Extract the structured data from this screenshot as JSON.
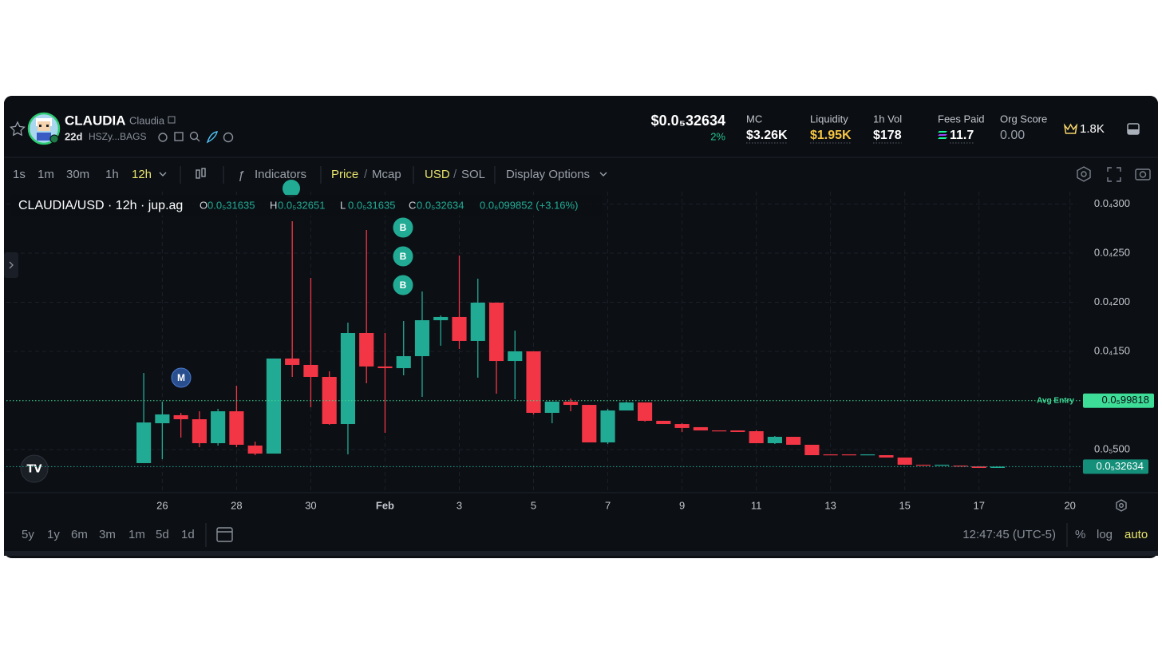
{
  "header": {
    "name": "CLAUDIA",
    "symbol": "Claudia",
    "age": "22d",
    "address": "HSZy...BAGS",
    "price": "$0.0₅32634",
    "change": "2%",
    "stats": [
      {
        "label": "MC",
        "value": "$3.26K"
      },
      {
        "label": "Liquidity",
        "value": "$1.95K"
      },
      {
        "label": "1h Vol",
        "value": "$178"
      },
      {
        "label": "Fees Paid",
        "value": "11.7"
      },
      {
        "label": "Org Score",
        "value": "0.00"
      }
    ],
    "holders": "1.8K"
  },
  "toolbar": {
    "intervals": [
      "1s",
      "1m",
      "30m",
      "1h",
      "12h"
    ],
    "active_interval": 4,
    "indicators": "Indicators",
    "separator": "/",
    "price": "Price",
    "mcap": "Mcap",
    "usd": "USD",
    "sol": "SOL",
    "display": "Display Options"
  },
  "legend": {
    "title": "CLAUDIA/USD · 12h · jup.ag",
    "ohlc": [
      {
        "key": "O",
        "value": "0.0₅31635"
      },
      {
        "key": "H",
        "value": "0.0₅32651"
      },
      {
        "key": "L",
        "value": "0.0₅31635"
      },
      {
        "key": "C",
        "value": "0.0₅32634"
      }
    ],
    "change": "0.0₆099852 (+3.16%)"
  },
  "markers": [
    {
      "label": "M"
    },
    {
      "label": "B"
    },
    {
      "label": "B"
    },
    {
      "label": "B"
    }
  ],
  "chart_data": {
    "type": "candlestick",
    "up_color": "#22ab94",
    "down_color": "#f23645",
    "grid": true,
    "ylim": [
      6.1e-07,
      3.126e-05
    ],
    "yticks": [
      {
        "value": 3e-05,
        "label": "0.0₄300"
      },
      {
        "value": 2.5e-05,
        "label": "0.0₄250"
      },
      {
        "value": 2e-05,
        "label": "0.0₄200"
      },
      {
        "value": 1.5e-05,
        "label": "0.0₄150"
      },
      {
        "value": 5e-06,
        "label": "0.0₅500"
      }
    ],
    "xlim": [
      -7.4,
      50.3
    ],
    "xticks": [
      {
        "value": 1,
        "label": "26"
      },
      {
        "value": 5,
        "label": "28"
      },
      {
        "value": 9,
        "label": "30"
      },
      {
        "value": 13,
        "label": "Feb"
      },
      {
        "value": 17,
        "label": "3"
      },
      {
        "value": 21,
        "label": "5"
      },
      {
        "value": 25,
        "label": "7"
      },
      {
        "value": 29,
        "label": "9"
      },
      {
        "value": 33,
        "label": "11"
      },
      {
        "value": 37,
        "label": "13"
      },
      {
        "value": 41,
        "label": "15"
      },
      {
        "value": 45,
        "label": "17"
      },
      {
        "value": 49.9,
        "label": "20"
      }
    ],
    "avg_entry": {
      "name": "Avg Entry",
      "value": 9.9818e-06,
      "label": "0.0₅99818"
    },
    "last_price": {
      "value": 3.2634e-06,
      "label": "0.0₅32634"
    },
    "candles": [
      {
        "o": 3.62e-06,
        "h": 1.28e-05,
        "l": 3.62e-06,
        "c": 7.76e-06
      },
      {
        "o": 7.68e-06,
        "h": 9.88e-06,
        "l": 4.02e-06,
        "c": 8.58e-06
      },
      {
        "o": 8.5e-06,
        "h": 8.74e-06,
        "l": 6.22e-06,
        "c": 8.09e-06
      },
      {
        "o": 8.09e-06,
        "h": 8.9e-06,
        "l": 5.24e-06,
        "c": 5.65e-06
      },
      {
        "o": 5.65e-06,
        "h": 9.15e-06,
        "l": 5.41e-06,
        "c": 8.9e-06
      },
      {
        "o": 8.9e-06,
        "h": 1.15e-05,
        "l": 5.24e-06,
        "c": 5.49e-06
      },
      {
        "o": 5.41e-06,
        "h": 5.81e-06,
        "l": 4.43e-06,
        "c": 4.59e-06
      },
      {
        "o": 4.59e-06,
        "h": 1.427e-05,
        "l": 4.59e-06,
        "c": 1.427e-05
      },
      {
        "o": 1.427e-05,
        "h": 2.825e-05,
        "l": 1.24e-05,
        "c": 1.362e-05
      },
      {
        "o": 1.362e-05,
        "h": 2.248e-05,
        "l": 9.31e-06,
        "c": 1.24e-05
      },
      {
        "o": 1.24e-05,
        "h": 1.297e-05,
        "l": 7.52e-06,
        "c": 7.6e-06
      },
      {
        "o": 7.6e-06,
        "h": 1.793e-05,
        "l": 4.51e-06,
        "c": 1.687e-05
      },
      {
        "o": 1.687e-05,
        "h": 2.736e-05,
        "l": 1.175e-05,
        "c": 1.346e-05
      },
      {
        "o": 1.346e-05,
        "h": 1.687e-05,
        "l": 6.71e-06,
        "c": 1.329e-05
      },
      {
        "o": 1.329e-05,
        "h": 1.809e-05,
        "l": 1.256e-05,
        "c": 1.451e-05
      },
      {
        "o": 1.451e-05,
        "h": 2.11e-05,
        "l": 1.037e-05,
        "c": 1.817e-05
      },
      {
        "o": 1.817e-05,
        "h": 1.866e-05,
        "l": 1.557e-05,
        "c": 1.85e-05
      },
      {
        "o": 1.85e-05,
        "h": 2.476e-05,
        "l": 1.524e-05,
        "c": 1.606e-05
      },
      {
        "o": 1.606e-05,
        "h": 2.24e-05,
        "l": 1.232e-05,
        "c": 1.996e-05
      },
      {
        "o": 1.996e-05,
        "h": 1.996e-05,
        "l": 1.069e-05,
        "c": 1.402e-05
      },
      {
        "o": 1.402e-05,
        "h": 1.711e-05,
        "l": 1.012e-05,
        "c": 1.5e-05
      },
      {
        "o": 1.5e-05,
        "h": 1.5e-05,
        "l": 8.58e-06,
        "c": 8.74e-06
      },
      {
        "o": 8.74e-06,
        "h": 9.88e-06,
        "l": 7.68e-06,
        "c": 9.88e-06
      },
      {
        "o": 9.88e-06,
        "h": 1.02e-05,
        "l": 8.9e-06,
        "c": 9.55e-06
      },
      {
        "o": 9.55e-06,
        "h": 9.55e-06,
        "l": 5.73e-06,
        "c": 5.73e-06
      },
      {
        "o": 5.73e-06,
        "h": 9.15e-06,
        "l": 5.57e-06,
        "c": 8.98e-06
      },
      {
        "o": 8.98e-06,
        "h": 9.88e-06,
        "l": 8.98e-06,
        "c": 9.8e-06
      },
      {
        "o": 9.8e-06,
        "h": 9.8e-06,
        "l": 7.85e-06,
        "c": 7.93e-06
      },
      {
        "o": 7.93e-06,
        "h": 7.93e-06,
        "l": 7.6e-06,
        "c": 7.6e-06
      },
      {
        "o": 7.6e-06,
        "h": 7.68e-06,
        "l": 6.79e-06,
        "c": 7.2e-06
      },
      {
        "o": 7.28e-06,
        "h": 7.28e-06,
        "l": 6.95e-06,
        "c": 6.95e-06
      },
      {
        "o": 6.95e-06,
        "h": 6.95e-06,
        "l": 6.87e-06,
        "c": 6.87e-06
      },
      {
        "o": 6.95e-06,
        "h": 6.95e-06,
        "l": 6.79e-06,
        "c": 6.79e-06
      },
      {
        "o": 6.87e-06,
        "h": 6.95e-06,
        "l": 5.65e-06,
        "c": 5.65e-06
      },
      {
        "o": 5.65e-06,
        "h": 6.38e-06,
        "l": 5.57e-06,
        "c": 6.3e-06
      },
      {
        "o": 6.3e-06,
        "h": 6.3e-06,
        "l": 5.49e-06,
        "c": 5.49e-06
      },
      {
        "o": 5.49e-06,
        "h": 5.49e-06,
        "l": 4.43e-06,
        "c": 4.43e-06
      },
      {
        "o": 4.51e-06,
        "h": 4.51e-06,
        "l": 4.43e-06,
        "c": 4.43e-06
      },
      {
        "o": 4.51e-06,
        "h": 4.51e-06,
        "l": 4.43e-06,
        "c": 4.43e-06
      },
      {
        "o": 4.43e-06,
        "h": 4.51e-06,
        "l": 4.43e-06,
        "c": 4.51e-06
      },
      {
        "o": 4.43e-06,
        "h": 4.43e-06,
        "l": 4.19e-06,
        "c": 4.19e-06
      },
      {
        "o": 4.19e-06,
        "h": 4.19e-06,
        "l": 3.46e-06,
        "c": 3.46e-06
      },
      {
        "o": 3.46e-06,
        "h": 3.46e-06,
        "l": 3.37e-06,
        "c": 3.37e-06
      },
      {
        "o": 3.37e-06,
        "h": 3.46e-06,
        "l": 3.37e-06,
        "c": 3.46e-06
      },
      {
        "o": 3.37e-06,
        "h": 3.37e-06,
        "l": 3.29e-06,
        "c": 3.29e-06
      },
      {
        "o": 3.29e-06,
        "h": 3.29e-06,
        "l": 3.13e-06,
        "c": 3.13e-06
      },
      {
        "o": 3.13e-06,
        "h": 3.2634e-06,
        "l": 3.13e-06,
        "c": 3.2634e-06
      }
    ]
  },
  "footer": {
    "ranges": [
      "5y",
      "1y",
      "6m",
      "3m",
      "1m",
      "5d",
      "1d"
    ],
    "time": "12:47:45 (UTC-5)",
    "percent": "%",
    "log": "log",
    "auto": "auto"
  }
}
